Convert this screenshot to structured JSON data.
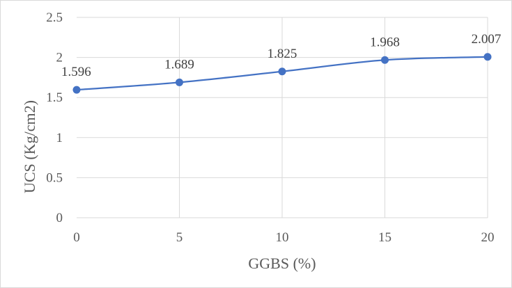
{
  "chart_data": {
    "type": "line",
    "x": [
      0,
      5,
      10,
      15,
      20
    ],
    "series": [
      {
        "values": [
          1.596,
          1.689,
          1.825,
          1.968,
          2.007
        ]
      }
    ],
    "data_labels": [
      "1.596",
      "1.689",
      "1.825",
      "1.968",
      "2.007"
    ],
    "xlabel": "GGBS (%)",
    "ylabel": "UCS (Kg/cm2)",
    "xlim": [
      0,
      20
    ],
    "ylim": [
      0,
      2.5
    ],
    "x_ticks": [
      "0",
      "5",
      "10",
      "15",
      "20"
    ],
    "y_ticks": [
      "0",
      "0.5",
      "1",
      "1.5",
      "2",
      "2.5"
    ],
    "grid": "horizontal",
    "legend": "none",
    "smooth": true,
    "colors": {
      "series": "#4472c4",
      "grid": "#d9d9d9"
    }
  }
}
